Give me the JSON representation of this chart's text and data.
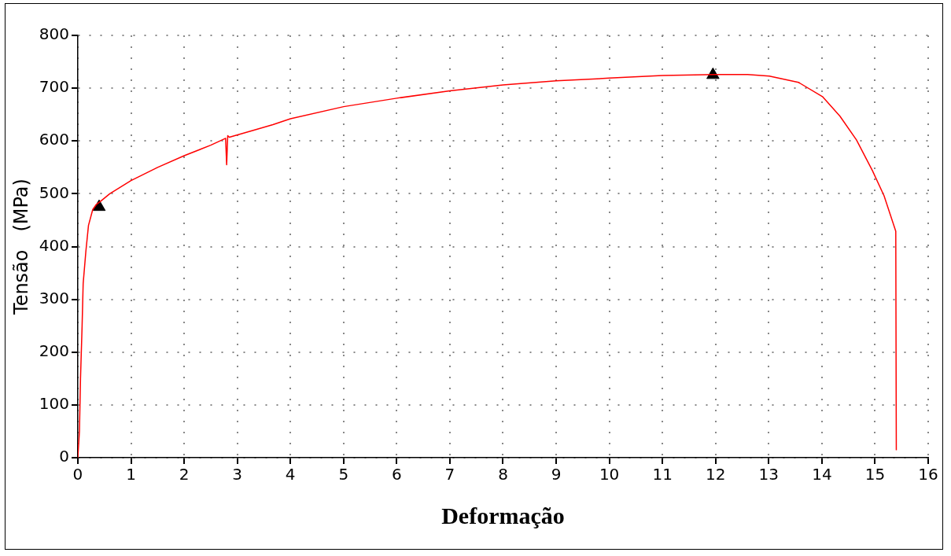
{
  "chart_data": {
    "type": "line",
    "xlabel": "Deformação",
    "ylabel": "Tensão   (MPa)",
    "xlim": [
      0,
      16
    ],
    "xticks": [
      0,
      1,
      2,
      3,
      4,
      5,
      6,
      7,
      8,
      9,
      10,
      11,
      12,
      13,
      14,
      15,
      16
    ],
    "ylim": [
      0,
      800
    ],
    "yticks": [
      0,
      100,
      200,
      300,
      400,
      500,
      600,
      700,
      800
    ],
    "grid": true,
    "legend": false,
    "line_style": "solid",
    "series": [
      {
        "type": "line",
        "color": "#ff0000",
        "marker": "none",
        "x": [
          0,
          0.03,
          0.05,
          0.08,
          0.1,
          0.15,
          0.2,
          0.28,
          0.35,
          0.42,
          0.6,
          1.0,
          1.5,
          2.0,
          2.5,
          2.78,
          2.8,
          2.82,
          2.85,
          3.3,
          3.67,
          4,
          5,
          6,
          7,
          8,
          9,
          10,
          11,
          12,
          12.6,
          13.01,
          13.56,
          14.01,
          14.34,
          14.65,
          14.95,
          15.17,
          15.39,
          15.4
        ],
        "values": [
          0,
          50,
          150,
          250,
          330,
          390,
          440,
          470,
          480,
          485,
          500,
          525,
          550,
          572,
          592,
          605,
          555,
          610,
          607,
          620,
          631,
          642,
          665,
          681,
          695,
          706,
          714,
          719,
          724,
          726,
          726,
          723,
          711,
          684,
          647,
          602,
          544,
          496,
          429,
          14
        ]
      },
      {
        "type": "scatter",
        "color": "#000000",
        "marker": "triangle",
        "x": [
          0.4,
          11.95
        ],
        "values": [
          475,
          725
        ]
      }
    ]
  }
}
